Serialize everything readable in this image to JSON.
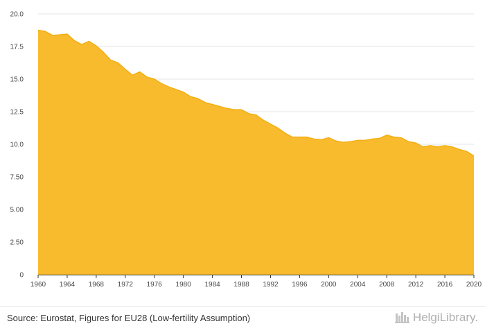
{
  "chart_data": {
    "type": "area",
    "title": "",
    "xlabel": "",
    "ylabel": "",
    "x": [
      1960,
      1961,
      1962,
      1963,
      1964,
      1965,
      1966,
      1967,
      1968,
      1969,
      1970,
      1971,
      1972,
      1973,
      1974,
      1975,
      1976,
      1977,
      1978,
      1979,
      1980,
      1981,
      1982,
      1983,
      1984,
      1985,
      1986,
      1987,
      1988,
      1989,
      1990,
      1991,
      1992,
      1993,
      1994,
      1995,
      1996,
      1997,
      1998,
      1999,
      2000,
      2001,
      2002,
      2003,
      2004,
      2005,
      2006,
      2007,
      2008,
      2009,
      2010,
      2011,
      2012,
      2013,
      2014,
      2015,
      2016,
      2017,
      2018,
      2019,
      2020
    ],
    "values": [
      18.75,
      18.65,
      18.35,
      18.4,
      18.45,
      17.95,
      17.65,
      17.9,
      17.55,
      17.05,
      16.45,
      16.25,
      15.75,
      15.3,
      15.55,
      15.15,
      15.0,
      14.65,
      14.4,
      14.2,
      14.0,
      13.65,
      13.5,
      13.2,
      13.05,
      12.9,
      12.75,
      12.65,
      12.65,
      12.35,
      12.25,
      11.85,
      11.55,
      11.25,
      10.85,
      10.55,
      10.55,
      10.55,
      10.4,
      10.35,
      10.5,
      10.25,
      10.15,
      10.2,
      10.3,
      10.3,
      10.4,
      10.45,
      10.7,
      10.55,
      10.5,
      10.2,
      10.1,
      9.8,
      9.9,
      9.8,
      9.9,
      9.8,
      9.6,
      9.45,
      9.1
    ],
    "xticks": [
      "1960",
      "1964",
      "1968",
      "1972",
      "1976",
      "1980",
      "1984",
      "1988",
      "1992",
      "1996",
      "2000",
      "2004",
      "2008",
      "2012",
      "2016",
      "2020"
    ],
    "yticks": [
      "0",
      "2.50",
      "5.00",
      "7.50",
      "10.0",
      "12.5",
      "15.0",
      "17.5",
      "20.0"
    ],
    "ylim": [
      0,
      20
    ],
    "xlim": [
      1960,
      2020
    ],
    "grid": true,
    "legend": "none",
    "colors": {
      "fill": "#f9bb2e",
      "line": "#f2ae12",
      "grid": "#e6e6e6",
      "axis": "#333333"
    }
  },
  "footer": {
    "source": "Source: Eurostat, Figures for EU28 (Low-fertility Assumption)",
    "brand": "HelgiLibrary.",
    "brand_icon": "helgi-library-logo-icon"
  }
}
